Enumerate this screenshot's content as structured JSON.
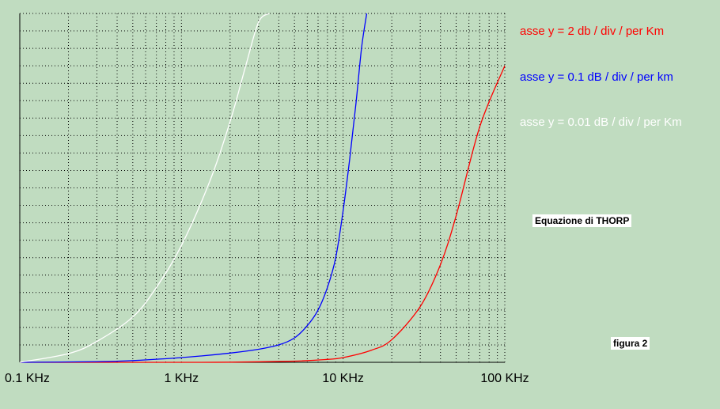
{
  "colors": {
    "background": "#c0dcc0",
    "grid": "#000000",
    "red": "#ff0000",
    "blue": "#0000ff",
    "white": "#ffffff"
  },
  "labels": {
    "equation": "Equazione di  THORP",
    "figure": "figura 2"
  },
  "chart_data": {
    "type": "line",
    "title": "",
    "xlabel": "",
    "ylabel": "",
    "x_scale": "log",
    "x_unit": "KHz",
    "xlim": [
      0.1,
      100
    ],
    "x_ticks": [
      0.1,
      1,
      10,
      100
    ],
    "x_tick_labels": [
      "0.1 KHz",
      "1 KHz",
      "10 KHz",
      "100 KHz"
    ],
    "y_divisions": 20,
    "grid": true,
    "legend_position": "right",
    "series": [
      {
        "name": "asse y = 2 db / div / per Km",
        "color": "#ff0000",
        "y_per_div": 2,
        "x": [
          0.1,
          1,
          2,
          5,
          8,
          10,
          15,
          20,
          30,
          40,
          50,
          70,
          100
        ],
        "y": [
          0.0,
          0.0,
          0.01,
          0.07,
          0.17,
          0.27,
          0.7,
          1.3,
          3.2,
          5.6,
          8.4,
          13.5,
          17.0
        ]
      },
      {
        "name": "asse y = 0.1 dB / div / per km",
        "color": "#0000ff",
        "y_per_div": 0.1,
        "x": [
          0.1,
          0.3,
          0.5,
          1,
          2,
          3,
          4,
          5,
          6,
          7,
          8,
          9,
          10,
          11,
          12,
          13,
          14
        ],
        "y": [
          0.0,
          0.04,
          0.1,
          0.27,
          0.53,
          0.75,
          1.0,
          1.4,
          2.1,
          3.0,
          4.3,
          6.0,
          8.7,
          11.7,
          14.8,
          18.0,
          20.0
        ]
      },
      {
        "name": "asse y = 0.01 dB / div / per Km",
        "color": "#ffffff",
        "y_per_div": 0.01,
        "x": [
          0.1,
          0.2,
          0.3,
          0.5,
          0.7,
          1,
          1.5,
          2,
          2.5,
          3,
          3.5
        ],
        "y": [
          0.0,
          0.5,
          1.2,
          2.6,
          4.3,
          6.7,
          10.4,
          13.8,
          17.0,
          19.5,
          20.0
        ]
      }
    ]
  }
}
